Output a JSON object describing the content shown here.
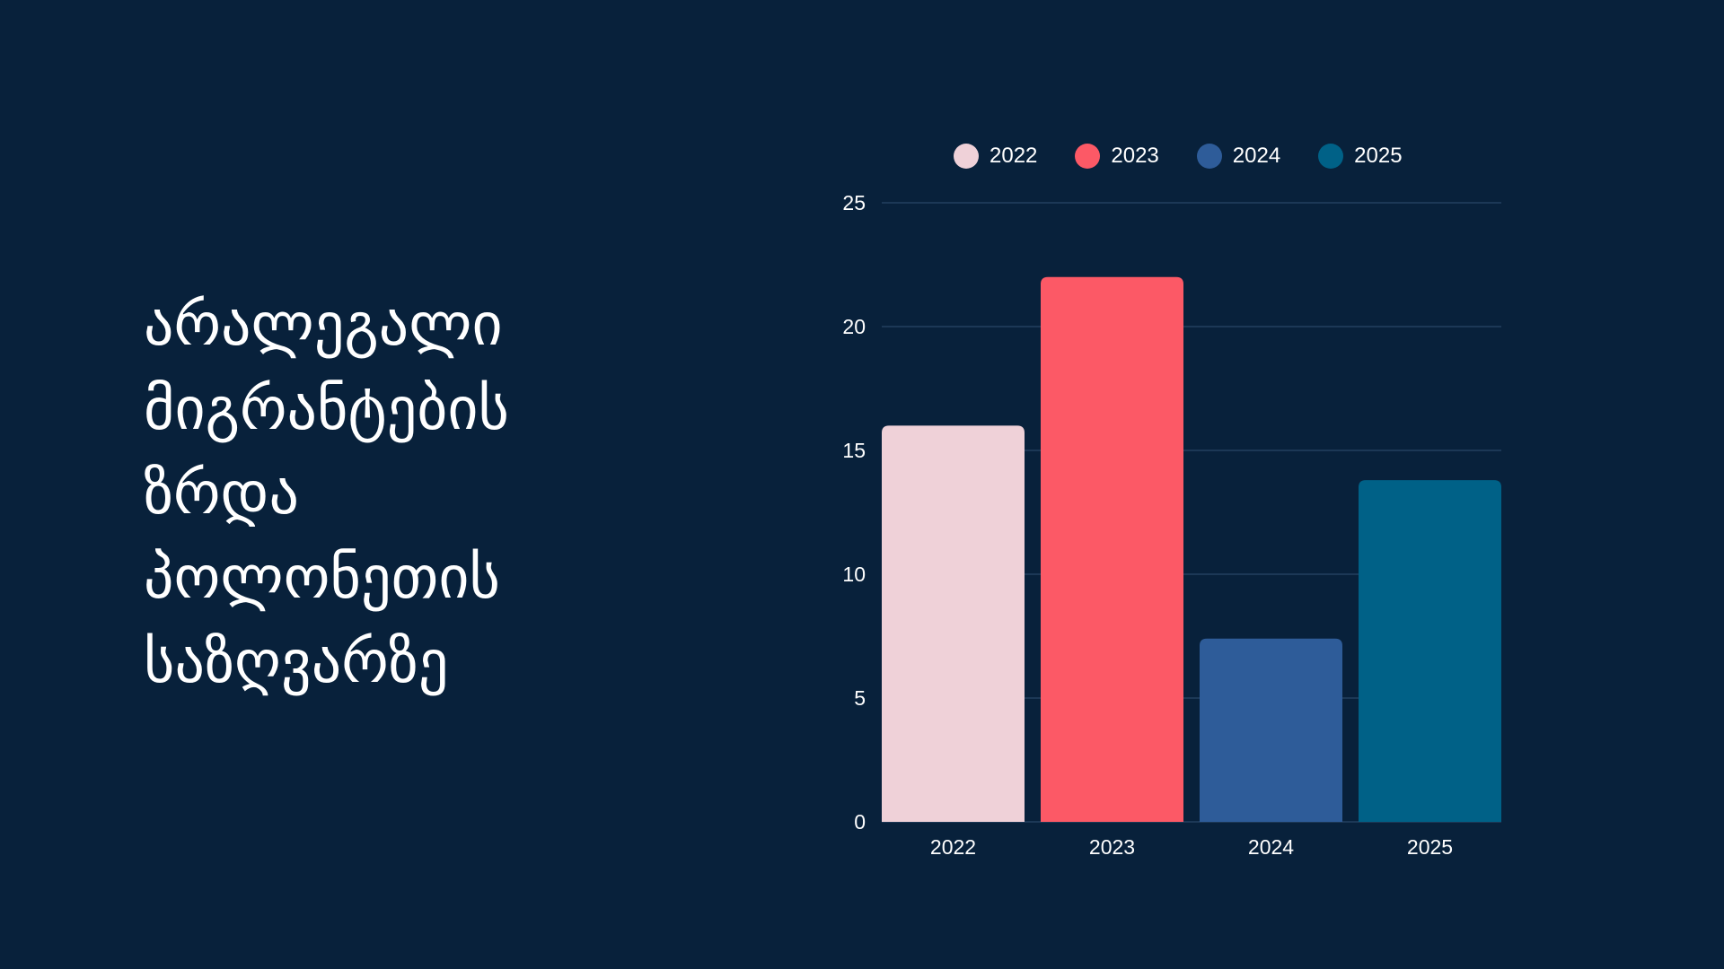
{
  "title": {
    "lines": [
      "არალეგალი",
      "მიგრანტების",
      "ზრდა",
      "პოლონეთის",
      "საზღვარზე"
    ]
  },
  "chart_data": {
    "type": "bar",
    "categories": [
      "2022",
      "2023",
      "2024",
      "2025"
    ],
    "values": [
      16,
      22,
      7.4,
      13.8
    ],
    "colors": [
      "#efd1d8",
      "#fc5966",
      "#2e5c99",
      "#006187"
    ],
    "legend": [
      "2022",
      "2023",
      "2024",
      "2025"
    ],
    "legend_position": "top",
    "title": "",
    "xlabel": "",
    "ylabel": "",
    "ylim": [
      0,
      25
    ],
    "yticks": [
      "0",
      "5",
      "10",
      "15",
      "20",
      "25"
    ],
    "grid": true
  }
}
